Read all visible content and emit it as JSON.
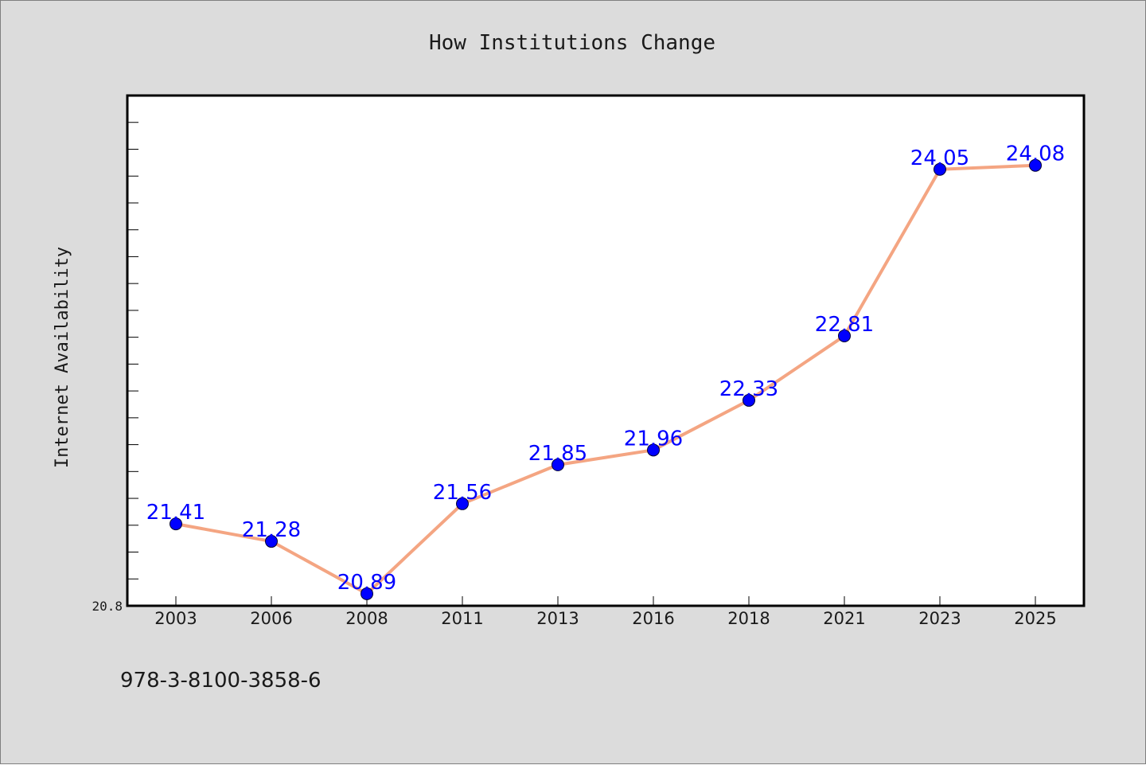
{
  "colors": {
    "background": "#dcdcdc",
    "plot_background": "#ffffff",
    "line": "#f4a582",
    "marker": "#0000ff",
    "data_label": "#0000ff",
    "text": "#1a1a1a"
  },
  "footer_text": "978-3-8100-3858-6",
  "chart_data": {
    "type": "line",
    "title": "How Institutions Change",
    "xlabel": "",
    "ylabel": "Internet Availability",
    "categories": [
      "2003",
      "2006",
      "2008",
      "2011",
      "2013",
      "2016",
      "2018",
      "2021",
      "2023",
      "2025"
    ],
    "series": [
      {
        "values": [
          21.41,
          21.28,
          20.89,
          21.56,
          21.85,
          21.96,
          22.33,
          22.81,
          24.05,
          24.08
        ],
        "labels": [
          "21.41",
          "21.28",
          "20.89",
          "21.56",
          "21.85",
          "21.96",
          "22.33",
          "22.81",
          "24.05",
          "24.08"
        ]
      }
    ],
    "y_tick_labels": [
      "20.8"
    ],
    "ylim": [
      20.8,
      24.6
    ],
    "grid": false,
    "legend": "none"
  }
}
